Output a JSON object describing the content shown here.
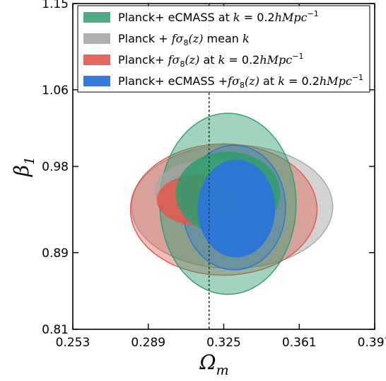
{
  "chart_data": {
    "type": "contour",
    "xlabel": "Ω_m",
    "ylabel": "β_1",
    "xlim": [
      0.253,
      0.397
    ],
    "ylim": [
      0.81,
      1.15
    ],
    "x_ticks": [
      "0.253",
      "0.289",
      "0.325",
      "0.361",
      "0.397"
    ],
    "y_ticks": [
      "0.81",
      "0.89",
      "0.98",
      "1.06",
      "1.15"
    ],
    "reference_line": {
      "axis": "x",
      "value": 0.318,
      "style": "dotted"
    },
    "legend_position": "top",
    "series": [
      {
        "name": "Planck+ eCMASS at k=0.2hMpc^-1",
        "color": "#2e9e6e",
        "contour_68": {
          "center": [
            0.327,
            0.952
          ],
          "x_range": [
            0.302,
            0.352
          ],
          "y_range": [
            0.905,
            0.992
          ]
        },
        "contour_95": {
          "center": [
            0.327,
            0.941
          ],
          "x_range": [
            0.297,
            0.362
          ],
          "y_range": [
            0.848,
            1.037
          ]
        }
      },
      {
        "name": "Planck + fσ8(z) mean k",
        "color": "#a7a7a7",
        "contour_68": {
          "center": [
            0.318,
            0.955
          ],
          "x_range": [
            0.292,
            0.344
          ],
          "y_range": [
            0.923,
            0.987
          ]
        },
        "contour_95": {
          "center": [
            0.329,
            0.938
          ],
          "x_range": [
            0.276,
            0.372
          ],
          "y_range": [
            0.884,
            1.013
          ]
        }
      },
      {
        "name": "Planck+ fσ8(z) at k=0.2hMpc^-1",
        "color": "#e2574c",
        "contour_68": {
          "center": [
            0.314,
            0.945
          ],
          "x_range": [
            0.293,
            0.335
          ],
          "y_range": [
            0.918,
            0.972
          ]
        },
        "contour_95": {
          "center": [
            0.325,
            0.935
          ],
          "x_range": [
            0.277,
            0.366
          ],
          "y_range": [
            0.874,
            1.011
          ]
        }
      },
      {
        "name": "Planck+ eCMASS +fσ8(z) at k=0.2hMpc^-1",
        "color": "#2a75d8",
        "contour_68": {
          "center": [
            0.331,
            0.936
          ],
          "x_range": [
            0.311,
            0.348
          ],
          "y_range": [
            0.885,
            0.987
          ]
        },
        "contour_95": {
          "center": [
            0.33,
            0.937
          ],
          "x_range": [
            0.306,
            0.355
          ],
          "y_range": [
            0.872,
            1.002
          ]
        }
      }
    ]
  }
}
